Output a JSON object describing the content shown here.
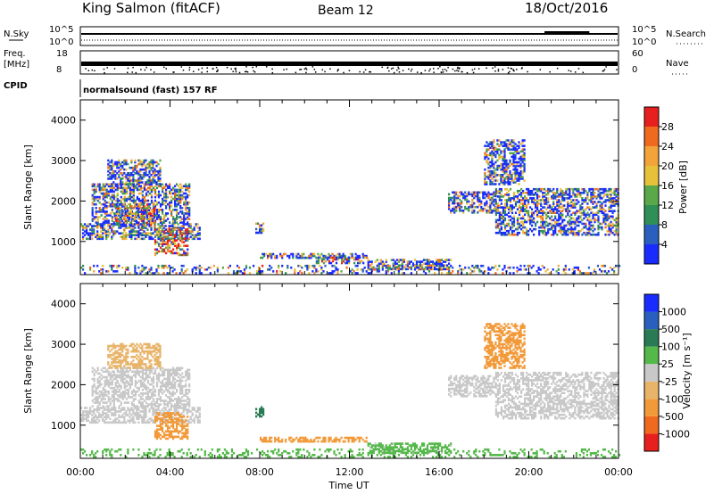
{
  "header": {
    "station": "King Salmon (fitACF)",
    "beam": "Beam 12",
    "date": "18/Oct/2016"
  },
  "status_panels": {
    "left_labels": {
      "nsky": "N.Sky",
      "freq_line1": "Freq.",
      "freq_line2": "[MHz]",
      "cpid": "CPID"
    },
    "right_labels": {
      "nsearch": "N.Search",
      "nave": "Nave"
    },
    "nsky_ticks": [
      "10^5",
      "10^0"
    ],
    "nsearch_ticks": [
      "10^5",
      "10^0"
    ],
    "freq_ticks": [
      "18",
      "8"
    ],
    "nave_ticks": [
      "60",
      "0"
    ],
    "cpid_text": "normalsound (fast) 157 RF"
  },
  "colors": {
    "power": [
      "#1a2bff",
      "#2a5fc0",
      "#2f8f56",
      "#5aa84a",
      "#e8c13a",
      "#f2a33a",
      "#ef6a1f",
      "#e81f1f"
    ],
    "velocity": [
      "#e81f1f",
      "#ef6a1f",
      "#f29a3a",
      "#e8b46a",
      "#c8c8c8",
      "#55b84a",
      "#2a7a56",
      "#2a5fc0",
      "#1a2bff"
    ]
  },
  "chart_data": [
    {
      "type": "heatmap",
      "name": "power",
      "xlabel": "",
      "ylabel": "Slant Range [km]",
      "x_tick_labels": [
        "00:00",
        "04:00",
        "08:00",
        "12:00",
        "16:00",
        "20:00",
        "00:00"
      ],
      "xlim_hours": [
        0,
        24
      ],
      "ylim_km": [
        180,
        4500
      ],
      "y_ticks": [
        1000,
        2000,
        3000,
        4000
      ],
      "y_tick_labels": [
        "1000",
        "2000",
        "3000",
        "4000"
      ],
      "colorbar_label": "Power [dB]",
      "colorbar_ticks": [
        "4",
        "8",
        "12",
        "16",
        "20",
        "24",
        "28"
      ],
      "colorbar_values": [
        4,
        8,
        12,
        16,
        20,
        24,
        28
      ],
      "colorbar_range": [
        0,
        32
      ],
      "regions": [
        {
          "t0": 0.0,
          "t1": 5.3,
          "r0": 1050,
          "r1": 1450,
          "v": 7
        },
        {
          "t0": 0.5,
          "t1": 4.9,
          "r0": 1450,
          "r1": 2400,
          "v": 8
        },
        {
          "t0": 1.2,
          "t1": 3.6,
          "r0": 2400,
          "r1": 3000,
          "v": 6
        },
        {
          "t0": 1.5,
          "t1": 3.3,
          "r0": 1400,
          "r1": 1900,
          "v": 14
        },
        {
          "t0": 3.3,
          "t1": 4.8,
          "r0": 650,
          "r1": 1300,
          "v": 22
        },
        {
          "t0": 7.8,
          "t1": 8.2,
          "r0": 1200,
          "r1": 1450,
          "v": 10
        },
        {
          "t0": 8.0,
          "t1": 12.8,
          "r0": 580,
          "r1": 680,
          "v": 8
        },
        {
          "t0": 10.5,
          "t1": 12.8,
          "r0": 450,
          "r1": 620,
          "v": 11
        },
        {
          "t0": 12.8,
          "t1": 16.5,
          "r0": 300,
          "r1": 560,
          "v": 7
        },
        {
          "t0": 16.4,
          "t1": 18.5,
          "r0": 1700,
          "r1": 2200,
          "v": 7
        },
        {
          "t0": 18.0,
          "t1": 19.8,
          "r0": 2400,
          "r1": 3500,
          "v": 7
        },
        {
          "t0": 18.5,
          "t1": 24.0,
          "r0": 1150,
          "r1": 2300,
          "v": 7
        },
        {
          "t0": 0.0,
          "t1": 24.0,
          "r0": 200,
          "r1": 420,
          "v": 9
        }
      ]
    },
    {
      "type": "heatmap",
      "name": "velocity",
      "xlabel": "Time UT",
      "ylabel": "Slant Range [km]",
      "x_tick_labels": [
        "00:00",
        "04:00",
        "08:00",
        "12:00",
        "16:00",
        "20:00",
        "00:00"
      ],
      "xlim_hours": [
        0,
        24
      ],
      "ylim_km": [
        180,
        4500
      ],
      "y_ticks": [
        1000,
        2000,
        3000,
        4000
      ],
      "y_tick_labels": [
        "1000",
        "2000",
        "3000",
        "4000"
      ],
      "colorbar_label": "Velocity [m s⁻¹]",
      "colorbar_ticks": [
        "-1000",
        "-500",
        "-100",
        "-25",
        "25",
        "100",
        "500",
        "1000"
      ],
      "colorbar_values": [
        -1000,
        -500,
        -100,
        -25,
        25,
        100,
        500,
        1000
      ],
      "regions": [
        {
          "t0": 0.0,
          "t1": 5.3,
          "r0": 1050,
          "r1": 1450,
          "v": 0
        },
        {
          "t0": 0.5,
          "t1": 4.9,
          "r0": 1450,
          "r1": 2400,
          "v": 5
        },
        {
          "t0": 1.2,
          "t1": 3.6,
          "r0": 2400,
          "r1": 3000,
          "v": -60
        },
        {
          "t0": 3.3,
          "t1": 4.8,
          "r0": 650,
          "r1": 1300,
          "v": -400
        },
        {
          "t0": 7.8,
          "t1": 8.2,
          "r0": 1200,
          "r1": 1450,
          "v": 150
        },
        {
          "t0": 8.0,
          "t1": 12.8,
          "r0": 580,
          "r1": 700,
          "v": -300
        },
        {
          "t0": 12.8,
          "t1": 16.5,
          "r0": 300,
          "r1": 560,
          "v": 40
        },
        {
          "t0": 16.4,
          "t1": 18.5,
          "r0": 1700,
          "r1": 2200,
          "v": 0
        },
        {
          "t0": 18.0,
          "t1": 19.8,
          "r0": 2400,
          "r1": 3500,
          "v": -200
        },
        {
          "t0": 18.5,
          "t1": 24.0,
          "r0": 1150,
          "r1": 2300,
          "v": 0
        },
        {
          "t0": 0.0,
          "t1": 24.0,
          "r0": 200,
          "r1": 420,
          "v": 60
        }
      ]
    }
  ]
}
